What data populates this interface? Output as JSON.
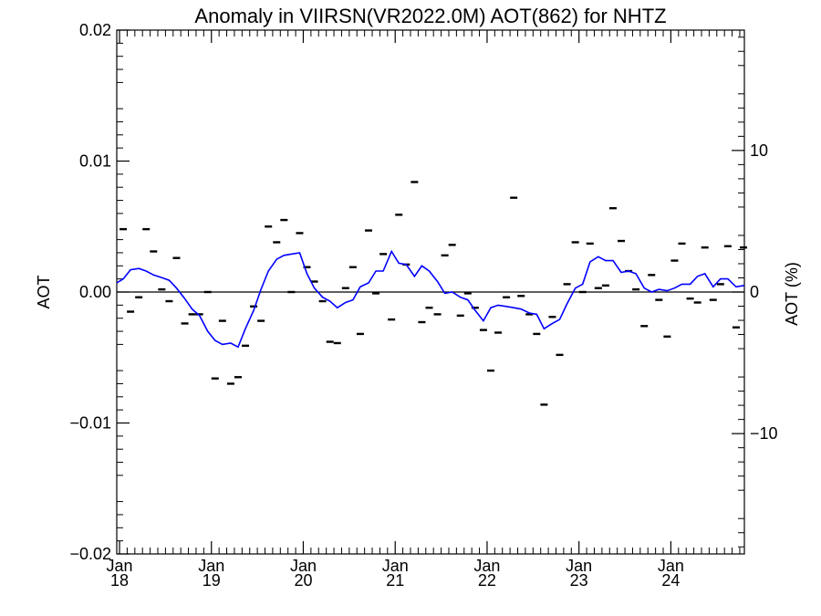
{
  "chart_data": {
    "type": "scatter",
    "title": "Anomaly in VIIRSN(VR2022.0M) AOT(862) for NHTZ",
    "ylabel": "AOT",
    "y2label": "AOT (%)",
    "xlabel": "",
    "ylim": [
      -0.02,
      0.02
    ],
    "y2lim": [
      -18.5,
      18.5
    ],
    "xlim": [
      2017.97,
      2024.8
    ],
    "yticks": [
      {
        "value": 0.02,
        "label": "0.02"
      },
      {
        "value": 0.01,
        "label": "0.01"
      },
      {
        "value": 0.0,
        "label": "0.00"
      },
      {
        "value": -0.01,
        "label": "−0.01"
      },
      {
        "value": -0.02,
        "label": "−0.02"
      }
    ],
    "y2ticks": [
      {
        "value": 10,
        "label": "10"
      },
      {
        "value": 0,
        "label": "0"
      },
      {
        "value": -10,
        "label": "−10"
      }
    ],
    "xticks": [
      {
        "value": 2018,
        "month": "Jan",
        "year": "18"
      },
      {
        "value": 2019,
        "month": "Jan",
        "year": "19"
      },
      {
        "value": 2020,
        "month": "Jan",
        "year": "20"
      },
      {
        "value": 2021,
        "month": "Jan",
        "year": "21"
      },
      {
        "value": 2022,
        "month": "Jan",
        "year": "22"
      },
      {
        "value": 2023,
        "month": "Jan",
        "year": "23"
      },
      {
        "value": 2024,
        "month": "Jan",
        "year": "24"
      }
    ],
    "grid": false,
    "legend": "none",
    "series": [
      {
        "kind": "monthly-points",
        "color": "#000000",
        "points": [
          [
            2018.04,
            0.0048
          ],
          [
            2018.12,
            -0.0015
          ],
          [
            2018.21,
            -0.0004
          ],
          [
            2018.29,
            0.0048
          ],
          [
            2018.37,
            0.0031
          ],
          [
            2018.46,
            0.0002
          ],
          [
            2018.54,
            -0.0007
          ],
          [
            2018.62,
            0.0026
          ],
          [
            2018.71,
            -0.0024
          ],
          [
            2018.79,
            -0.0017
          ],
          [
            2018.87,
            -0.0017
          ],
          [
            2018.96,
            0.0
          ],
          [
            2019.04,
            -0.0066
          ],
          [
            2019.12,
            -0.0022
          ],
          [
            2019.21,
            -0.007
          ],
          [
            2019.29,
            -0.0065
          ],
          [
            2019.37,
            -0.0041
          ],
          [
            2019.46,
            -0.0011
          ],
          [
            2019.54,
            -0.0022
          ],
          [
            2019.62,
            0.005
          ],
          [
            2019.71,
            0.0038
          ],
          [
            2019.79,
            0.0055
          ],
          [
            2019.87,
            0.0
          ],
          [
            2019.96,
            0.0045
          ],
          [
            2020.04,
            0.0019
          ],
          [
            2020.12,
            0.0008
          ],
          [
            2020.21,
            -0.0007
          ],
          [
            2020.29,
            -0.0038
          ],
          [
            2020.37,
            -0.0039
          ],
          [
            2020.46,
            0.0003
          ],
          [
            2020.54,
            0.0019
          ],
          [
            2020.62,
            -0.0032
          ],
          [
            2020.71,
            0.0047
          ],
          [
            2020.79,
            -0.0001
          ],
          [
            2020.87,
            0.0029
          ],
          [
            2020.96,
            -0.0021
          ],
          [
            2021.04,
            0.0059
          ],
          [
            2021.12,
            0.0021
          ],
          [
            2021.21,
            0.0084
          ],
          [
            2021.29,
            -0.0023
          ],
          [
            2021.37,
            -0.0012
          ],
          [
            2021.46,
            -0.0017
          ],
          [
            2021.54,
            0.0028
          ],
          [
            2021.62,
            0.0036
          ],
          [
            2021.71,
            -0.0018
          ],
          [
            2021.79,
            -0.0001
          ],
          [
            2021.87,
            -0.0012
          ],
          [
            2021.96,
            -0.0029
          ],
          [
            2022.04,
            -0.006
          ],
          [
            2022.12,
            -0.0031
          ],
          [
            2022.21,
            -0.0004
          ],
          [
            2022.29,
            0.0072
          ],
          [
            2022.37,
            -0.0003
          ],
          [
            2022.46,
            -0.0017
          ],
          [
            2022.54,
            -0.0032
          ],
          [
            2022.62,
            -0.0086
          ],
          [
            2022.71,
            -0.0019
          ],
          [
            2022.79,
            -0.0048
          ],
          [
            2022.87,
            0.0006
          ],
          [
            2022.96,
            0.0038
          ],
          [
            2023.04,
            0.0
          ],
          [
            2023.12,
            0.0037
          ],
          [
            2023.21,
            0.0003
          ],
          [
            2023.29,
            0.0005
          ],
          [
            2023.37,
            0.0064
          ],
          [
            2023.46,
            0.0039
          ],
          [
            2023.54,
            0.0016
          ],
          [
            2023.62,
            0.0002
          ],
          [
            2023.71,
            -0.0026
          ],
          [
            2023.79,
            0.0013
          ],
          [
            2023.87,
            -0.0006
          ],
          [
            2023.96,
            -0.0034
          ],
          [
            2024.04,
            0.0024
          ],
          [
            2024.12,
            0.0037
          ],
          [
            2024.21,
            -0.0005
          ],
          [
            2024.29,
            -0.0008
          ],
          [
            2024.37,
            0.0034
          ],
          [
            2024.46,
            -0.0006
          ],
          [
            2024.54,
            0.0006
          ],
          [
            2024.62,
            0.0035
          ],
          [
            2024.71,
            -0.0027
          ],
          [
            2024.79,
            0.0034
          ]
        ]
      },
      {
        "kind": "running-mean",
        "color": "#0000ff",
        "points": [
          [
            2017.97,
            0.0007
          ],
          [
            2018.04,
            0.001
          ],
          [
            2018.12,
            0.0017
          ],
          [
            2018.21,
            0.0018
          ],
          [
            2018.29,
            0.0016
          ],
          [
            2018.37,
            0.0013
          ],
          [
            2018.46,
            0.0011
          ],
          [
            2018.54,
            0.0009
          ],
          [
            2018.62,
            0.0003
          ],
          [
            2018.71,
            -0.0005
          ],
          [
            2018.79,
            -0.0013
          ],
          [
            2018.87,
            -0.0018
          ],
          [
            2018.96,
            -0.003
          ],
          [
            2019.04,
            -0.0037
          ],
          [
            2019.12,
            -0.004
          ],
          [
            2019.21,
            -0.0039
          ],
          [
            2019.29,
            -0.0042
          ],
          [
            2019.37,
            -0.0028
          ],
          [
            2019.46,
            -0.0014
          ],
          [
            2019.54,
            0.0002
          ],
          [
            2019.62,
            0.0016
          ],
          [
            2019.71,
            0.0025
          ],
          [
            2019.79,
            0.0028
          ],
          [
            2019.87,
            0.0029
          ],
          [
            2019.96,
            0.003
          ],
          [
            2020.04,
            0.0014
          ],
          [
            2020.12,
            0.0003
          ],
          [
            2020.21,
            -0.0004
          ],
          [
            2020.29,
            -0.0007
          ],
          [
            2020.37,
            -0.0012
          ],
          [
            2020.46,
            -0.0008
          ],
          [
            2020.54,
            -0.0006
          ],
          [
            2020.62,
            0.0004
          ],
          [
            2020.71,
            0.0007
          ],
          [
            2020.79,
            0.0016
          ],
          [
            2020.87,
            0.0016
          ],
          [
            2020.96,
            0.0031
          ],
          [
            2021.04,
            0.0022
          ],
          [
            2021.12,
            0.0021
          ],
          [
            2021.21,
            0.0012
          ],
          [
            2021.29,
            0.002
          ],
          [
            2021.37,
            0.0016
          ],
          [
            2021.46,
            0.0008
          ],
          [
            2021.54,
            -0.0001
          ],
          [
            2021.62,
            0.0
          ],
          [
            2021.71,
            -0.0004
          ],
          [
            2021.79,
            -0.0006
          ],
          [
            2021.87,
            -0.0014
          ],
          [
            2021.96,
            -0.0022
          ],
          [
            2022.04,
            -0.0012
          ],
          [
            2022.12,
            -0.001
          ],
          [
            2022.21,
            -0.0011
          ],
          [
            2022.29,
            -0.0012
          ],
          [
            2022.37,
            -0.0013
          ],
          [
            2022.46,
            -0.0016
          ],
          [
            2022.54,
            -0.0017
          ],
          [
            2022.62,
            -0.0028
          ],
          [
            2022.71,
            -0.0024
          ],
          [
            2022.79,
            -0.0021
          ],
          [
            2022.87,
            -0.0009
          ],
          [
            2022.96,
            0.0003
          ],
          [
            2023.04,
            0.0006
          ],
          [
            2023.12,
            0.0023
          ],
          [
            2023.21,
            0.0027
          ],
          [
            2023.29,
            0.0024
          ],
          [
            2023.37,
            0.0024
          ],
          [
            2023.46,
            0.0015
          ],
          [
            2023.54,
            0.0016
          ],
          [
            2023.62,
            0.0014
          ],
          [
            2023.71,
            0.0003
          ],
          [
            2023.79,
            0.0
          ],
          [
            2023.87,
            0.0002
          ],
          [
            2023.96,
            0.0001
          ],
          [
            2024.04,
            0.0003
          ],
          [
            2024.12,
            0.0006
          ],
          [
            2024.21,
            0.0006
          ],
          [
            2024.29,
            0.0012
          ],
          [
            2024.37,
            0.0014
          ],
          [
            2024.46,
            0.0004
          ],
          [
            2024.54,
            0.001
          ],
          [
            2024.62,
            0.001
          ],
          [
            2024.71,
            0.0004
          ],
          [
            2024.8,
            0.0005
          ]
        ]
      }
    ]
  }
}
